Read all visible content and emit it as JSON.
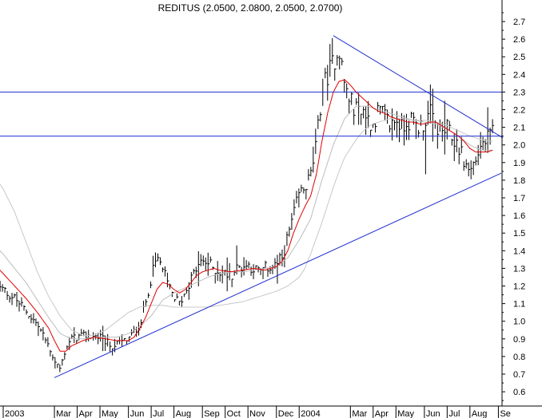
{
  "chart_data": {
    "type": "line",
    "title": "REDITUS (2.0500, 2.0800, 2.0500, 2.0700)",
    "xlabel": "",
    "ylabel": "",
    "ylim": [
      0.55,
      2.8
    ],
    "yticks": [
      "2.7",
      "2.6",
      "2.5",
      "2.4",
      "2.3",
      "2.2",
      "2.1",
      "2.0",
      "1.9",
      "1.8",
      "1.7",
      "1.6",
      "1.5",
      "1.4",
      "1.3",
      "1.2",
      "1.1",
      "1.0",
      "0.9",
      "0.8",
      "0.7",
      "0.6"
    ],
    "xticks": [
      {
        "label": "2003",
        "t": 0
      },
      {
        "label": "Mar",
        "t": 9
      },
      {
        "label": "Apr",
        "t": 13
      },
      {
        "label": "May",
        "t": 17
      },
      {
        "label": "Jun",
        "t": 22
      },
      {
        "label": "Jul",
        "t": 26
      },
      {
        "label": "Aug",
        "t": 30
      },
      {
        "label": "Sep",
        "t": 35
      },
      {
        "label": "Oct",
        "t": 39
      },
      {
        "label": "Nov",
        "t": 43
      },
      {
        "label": "Dec",
        "t": 48
      },
      {
        "label": "2004",
        "t": 52
      },
      {
        "label": "Mar",
        "t": 61
      },
      {
        "label": "Apr",
        "t": 65
      },
      {
        "label": "May",
        "t": 69
      },
      {
        "label": "Jun",
        "t": 74
      },
      {
        "label": "Jul",
        "t": 78
      },
      {
        "label": "Aug",
        "t": 82
      },
      {
        "label": "Se",
        "t": 87
      }
    ],
    "price_anchors": [
      [
        -2,
        1.2
      ],
      [
        0,
        1.18
      ],
      [
        2,
        1.13
      ],
      [
        4,
        1.06
      ],
      [
        6,
        0.98
      ],
      [
        8,
        0.86
      ],
      [
        9,
        0.78
      ],
      [
        10,
        0.73
      ],
      [
        11,
        0.85
      ],
      [
        12,
        0.9
      ],
      [
        13,
        0.91
      ],
      [
        15,
        0.92
      ],
      [
        17,
        0.91
      ],
      [
        19,
        0.86
      ],
      [
        20,
        0.87
      ],
      [
        22,
        0.9
      ],
      [
        23,
        0.94
      ],
      [
        24,
        0.98
      ],
      [
        25,
        1.1
      ],
      [
        26,
        1.25
      ],
      [
        27,
        1.36
      ],
      [
        28,
        1.3
      ],
      [
        29,
        1.2
      ],
      [
        30,
        1.14
      ],
      [
        31,
        1.1
      ],
      [
        32,
        1.17
      ],
      [
        33,
        1.24
      ],
      [
        34,
        1.3
      ],
      [
        35,
        1.34
      ],
      [
        36,
        1.33
      ],
      [
        37,
        1.3
      ],
      [
        38,
        1.28
      ],
      [
        39,
        1.27
      ],
      [
        40,
        1.26
      ],
      [
        41,
        1.3
      ],
      [
        42,
        1.31
      ],
      [
        43,
        1.32
      ],
      [
        44,
        1.3
      ],
      [
        45,
        1.28
      ],
      [
        46,
        1.3
      ],
      [
        47,
        1.31
      ],
      [
        48,
        1.32
      ],
      [
        49,
        1.36
      ],
      [
        50,
        1.48
      ],
      [
        51,
        1.6
      ],
      [
        52,
        1.72
      ],
      [
        53,
        1.76
      ],
      [
        54,
        1.82
      ],
      [
        55,
        2.0
      ],
      [
        56,
        2.3
      ],
      [
        57,
        2.4
      ],
      [
        58,
        2.47
      ],
      [
        59,
        2.56
      ],
      [
        60,
        2.34
      ],
      [
        61,
        2.25
      ],
      [
        62,
        2.2
      ],
      [
        63,
        2.22
      ],
      [
        64,
        2.15
      ],
      [
        65,
        2.12
      ],
      [
        66,
        2.2
      ],
      [
        67,
        2.16
      ],
      [
        68,
        2.11
      ],
      [
        69,
        2.15
      ],
      [
        70,
        2.1
      ],
      [
        71,
        2.14
      ],
      [
        72,
        2.13
      ],
      [
        73,
        2.1
      ],
      [
        74,
        2.13
      ],
      [
        75,
        2.18
      ],
      [
        76,
        2.11
      ],
      [
        77,
        2.07
      ],
      [
        78,
        2.09
      ],
      [
        79,
        2.03
      ],
      [
        80,
        2.0
      ],
      [
        81,
        1.9
      ],
      [
        82,
        1.85
      ],
      [
        83,
        1.92
      ],
      [
        84,
        2.0
      ],
      [
        85,
        2.03
      ],
      [
        86,
        2.07
      ]
    ],
    "ma_short_anchors": [
      [
        -2,
        1.34
      ],
      [
        0,
        1.27
      ],
      [
        2,
        1.2
      ],
      [
        4,
        1.13
      ],
      [
        6,
        1.05
      ],
      [
        8,
        0.96
      ],
      [
        9,
        0.89
      ],
      [
        10,
        0.83
      ],
      [
        11,
        0.83
      ],
      [
        12,
        0.86
      ],
      [
        14,
        0.89
      ],
      [
        16,
        0.91
      ],
      [
        18,
        0.9
      ],
      [
        20,
        0.89
      ],
      [
        22,
        0.89
      ],
      [
        23,
        0.91
      ],
      [
        24,
        0.96
      ],
      [
        25,
        1.02
      ],
      [
        26,
        1.1
      ],
      [
        27,
        1.18
      ],
      [
        28,
        1.22
      ],
      [
        29,
        1.21
      ],
      [
        30,
        1.18
      ],
      [
        31,
        1.16
      ],
      [
        32,
        1.18
      ],
      [
        33,
        1.22
      ],
      [
        34,
        1.26
      ],
      [
        35,
        1.28
      ],
      [
        36,
        1.29
      ],
      [
        37,
        1.3
      ],
      [
        38,
        1.29
      ],
      [
        40,
        1.28
      ],
      [
        42,
        1.29
      ],
      [
        44,
        1.3
      ],
      [
        46,
        1.29
      ],
      [
        48,
        1.31
      ],
      [
        49,
        1.34
      ],
      [
        50,
        1.4
      ],
      [
        51,
        1.5
      ],
      [
        52,
        1.58
      ],
      [
        53,
        1.65
      ],
      [
        54,
        1.71
      ],
      [
        55,
        1.83
      ],
      [
        56,
        2.02
      ],
      [
        57,
        2.18
      ],
      [
        58,
        2.3
      ],
      [
        59,
        2.36
      ],
      [
        60,
        2.37
      ],
      [
        61,
        2.34
      ],
      [
        62,
        2.3
      ],
      [
        63,
        2.27
      ],
      [
        64,
        2.24
      ],
      [
        65,
        2.21
      ],
      [
        66,
        2.19
      ],
      [
        67,
        2.18
      ],
      [
        68,
        2.16
      ],
      [
        69,
        2.15
      ],
      [
        70,
        2.14
      ],
      [
        71,
        2.13
      ],
      [
        72,
        2.13
      ],
      [
        73,
        2.12
      ],
      [
        74,
        2.12
      ],
      [
        75,
        2.13
      ],
      [
        76,
        2.13
      ],
      [
        77,
        2.11
      ],
      [
        78,
        2.09
      ],
      [
        79,
        2.07
      ],
      [
        80,
        2.05
      ],
      [
        81,
        2.02
      ],
      [
        82,
        1.98
      ],
      [
        83,
        1.96
      ],
      [
        84,
        1.96
      ],
      [
        85,
        1.96
      ],
      [
        86,
        1.97
      ]
    ],
    "ma_long_anchors": [
      [
        -2,
        1.85
      ],
      [
        0,
        1.75
      ],
      [
        2,
        1.62
      ],
      [
        4,
        1.45
      ],
      [
        6,
        1.28
      ],
      [
        8,
        1.14
      ],
      [
        10,
        1.03
      ],
      [
        12,
        0.95
      ],
      [
        14,
        0.92
      ],
      [
        16,
        0.92
      ],
      [
        18,
        0.95
      ],
      [
        20,
        1.0
      ],
      [
        22,
        1.05
      ],
      [
        24,
        1.08
      ],
      [
        26,
        1.09
      ],
      [
        28,
        1.09
      ],
      [
        30,
        1.08
      ],
      [
        32,
        1.08
      ],
      [
        34,
        1.08
      ],
      [
        36,
        1.08
      ],
      [
        38,
        1.09
      ],
      [
        40,
        1.1
      ],
      [
        42,
        1.11
      ],
      [
        44,
        1.13
      ],
      [
        46,
        1.15
      ],
      [
        48,
        1.17
      ],
      [
        50,
        1.2
      ],
      [
        52,
        1.25
      ],
      [
        53,
        1.3
      ],
      [
        54,
        1.38
      ],
      [
        55,
        1.47
      ],
      [
        56,
        1.56
      ],
      [
        57,
        1.66
      ],
      [
        58,
        1.76
      ],
      [
        59,
        1.85
      ],
      [
        60,
        1.93
      ],
      [
        61,
        1.98
      ],
      [
        62,
        2.03
      ],
      [
        63,
        2.07
      ],
      [
        64,
        2.1
      ],
      [
        65,
        2.12
      ],
      [
        66,
        2.13
      ],
      [
        67,
        2.14
      ],
      [
        68,
        2.15
      ],
      [
        70,
        2.15
      ],
      [
        72,
        2.14
      ],
      [
        74,
        2.14
      ],
      [
        76,
        2.13
      ],
      [
        78,
        2.11
      ],
      [
        80,
        2.08
      ],
      [
        82,
        2.05
      ],
      [
        84,
        2.03
      ],
      [
        86,
        2.02
      ]
    ],
    "ma_mid_anchors": [
      [
        -2,
        1.45
      ],
      [
        0,
        1.38
      ],
      [
        2,
        1.3
      ],
      [
        4,
        1.22
      ],
      [
        6,
        1.12
      ],
      [
        8,
        1.02
      ],
      [
        10,
        0.93
      ],
      [
        12,
        0.9
      ],
      [
        14,
        0.9
      ],
      [
        16,
        0.91
      ],
      [
        18,
        0.91
      ],
      [
        20,
        0.91
      ],
      [
        22,
        0.93
      ],
      [
        24,
        0.97
      ],
      [
        26,
        1.03
      ],
      [
        28,
        1.12
      ],
      [
        30,
        1.16
      ],
      [
        32,
        1.19
      ],
      [
        34,
        1.22
      ],
      [
        36,
        1.25
      ],
      [
        38,
        1.27
      ],
      [
        40,
        1.28
      ],
      [
        42,
        1.28
      ],
      [
        44,
        1.29
      ],
      [
        46,
        1.3
      ],
      [
        48,
        1.31
      ],
      [
        50,
        1.36
      ],
      [
        52,
        1.46
      ],
      [
        54,
        1.58
      ],
      [
        56,
        1.8
      ],
      [
        58,
        2.0
      ],
      [
        60,
        2.15
      ],
      [
        62,
        2.22
      ],
      [
        64,
        2.22
      ],
      [
        66,
        2.2
      ],
      [
        68,
        2.18
      ],
      [
        70,
        2.16
      ],
      [
        72,
        2.14
      ],
      [
        74,
        2.13
      ],
      [
        76,
        2.12
      ],
      [
        78,
        2.09
      ],
      [
        80,
        2.05
      ],
      [
        82,
        2.0
      ],
      [
        84,
        1.97
      ],
      [
        86,
        1.97
      ]
    ],
    "h_lines": [
      2.3,
      2.05
    ],
    "trend_lines": [
      {
        "name": "support",
        "from": [
          9.0,
          0.68
        ],
        "to": [
          87.5,
          1.84
        ]
      },
      {
        "name": "resistance",
        "from": [
          58.0,
          2.62
        ],
        "to": [
          87.8,
          2.04
        ]
      }
    ],
    "colors": {
      "price": "#000000",
      "ma_short": "#e00000",
      "ma_mid": "#bdbdbd",
      "ma_long": "#c8c8c8",
      "lines": "#1e2fd0",
      "axis": "#000000"
    }
  }
}
